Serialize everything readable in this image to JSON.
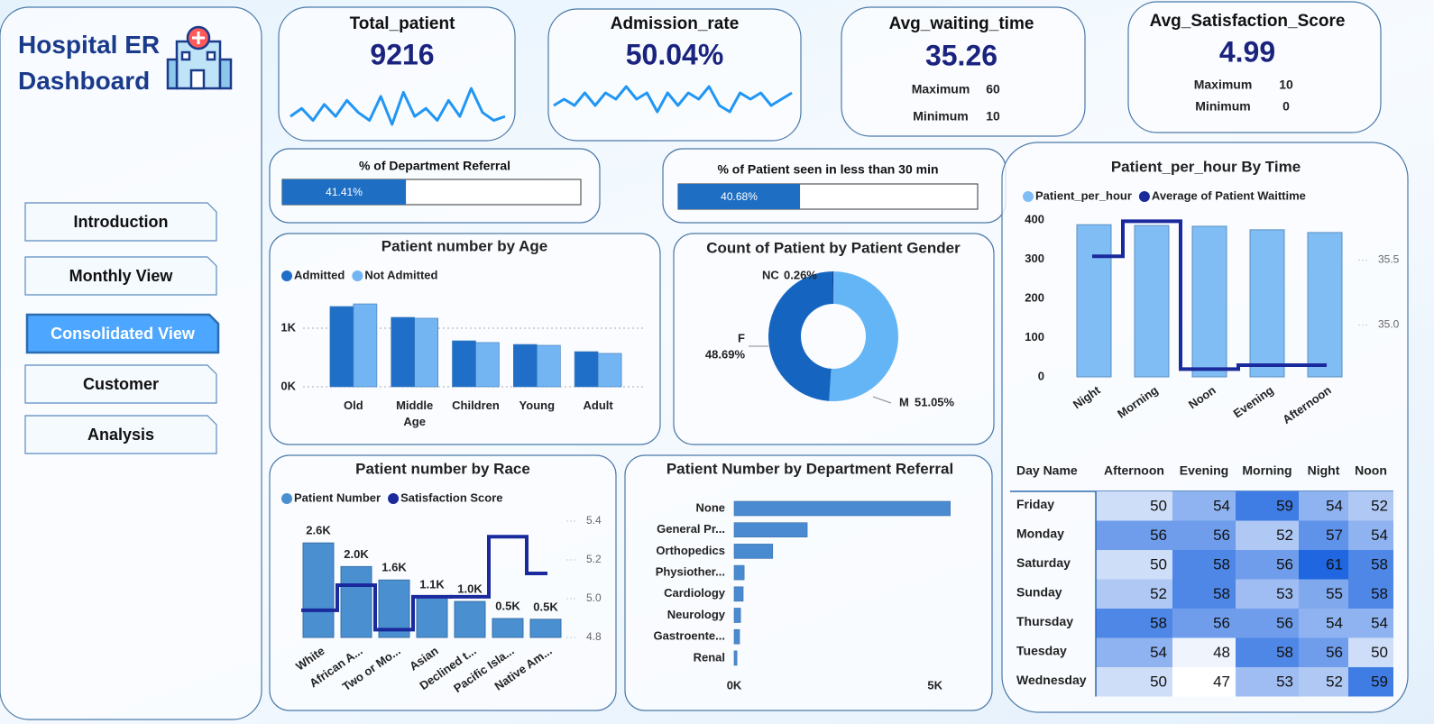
{
  "header": {
    "title": "Hospital ER Dashboard"
  },
  "nav": {
    "items": [
      "Introduction",
      "Monthly View",
      "Consolidated View",
      "Customer",
      "Analysis"
    ],
    "active": 2
  },
  "kpis": [
    {
      "title": "Total_patient",
      "value": 9216,
      "sparkline": [
        3,
        5,
        2,
        6,
        3,
        7,
        4,
        2,
        8,
        1,
        9,
        3,
        5,
        2,
        7,
        3,
        10,
        4,
        2,
        3
      ]
    },
    {
      "title": "Admission_rate",
      "value": "50.04%",
      "sparkline": [
        4,
        5,
        4,
        6,
        4,
        6,
        5,
        7,
        5,
        6,
        3,
        6,
        4,
        6,
        5,
        7,
        4,
        3,
        6,
        5,
        6,
        4,
        5,
        6
      ]
    },
    {
      "title": "Avg_waiting_time",
      "value": 35.26,
      "stats": [
        {
          "label": "Maximum",
          "value": 60
        },
        {
          "label": "Minimum",
          "value": 10
        }
      ]
    },
    {
      "title": "Avg_Satisfaction_Score",
      "value": 4.99,
      "stats": [
        {
          "label": "Maximum",
          "value": 10
        },
        {
          "label": "Minimum",
          "value": 0
        }
      ]
    }
  ],
  "chart_data": [
    {
      "type": "progress",
      "title": "% of Department Referral",
      "value": 41.41,
      "value_label": "41.41%",
      "xlim": [
        0,
        100
      ],
      "color": "#1e6fc4"
    },
    {
      "type": "progress",
      "title": "% of Patient seen in less than 30 min",
      "value": 40.68,
      "value_label": "40.68%",
      "xlim": [
        0,
        100
      ],
      "color": "#1e6fc4"
    },
    {
      "type": "bar",
      "title": "Patient number by Age",
      "categories": [
        "Old",
        "Middle Age",
        "Children",
        "Young",
        "Adult"
      ],
      "series": [
        {
          "name": "Admitted",
          "color": "#1f6fc8",
          "values": [
            1370,
            1185,
            785,
            723,
            600
          ]
        },
        {
          "name": "Not Admitted",
          "color": "#72b5f2",
          "values": [
            1415,
            1170,
            755,
            708,
            570
          ]
        }
      ],
      "ylim": [
        0,
        1700
      ],
      "yticks": [
        {
          "value": 0,
          "label": "0K"
        },
        {
          "value": 1000,
          "label": "1K"
        }
      ],
      "grid": true
    },
    {
      "type": "donut",
      "title": "Count of Patient by Patient Gender",
      "categories": [
        "M",
        "F",
        "NC"
      ],
      "values": [
        51.05,
        48.69,
        0.26
      ],
      "value_labels": [
        "51.05%",
        "48.69%",
        "0.26%"
      ],
      "colors": [
        "#64b5f6",
        "#1565c0",
        "#0d3c8c"
      ]
    },
    {
      "type": "combo",
      "title": "Patient number by Race",
      "categories": [
        "White",
        "African A...",
        "Two or Mo...",
        "Asian",
        "Declined t...",
        "Pacific Isla...",
        "Native Am..."
      ],
      "series": [
        {
          "name": "Patient Number",
          "type": "bar",
          "color": "#4a8fd0",
          "values": [
            2600,
            1950,
            1580,
            1120,
            990,
            520,
            500
          ],
          "value_labels": [
            "2.6K",
            "2.0K",
            "1.6K",
            "1.1K",
            "1.0K",
            "0.5K",
            "0.5K"
          ]
        },
        {
          "name": "Satisfaction Score",
          "type": "line",
          "axis": "y2",
          "color": "#1a2a9c",
          "values": [
            4.94,
            5.07,
            4.84,
            5.01,
            5.01,
            5.32,
            5.13
          ]
        }
      ],
      "ylim": [
        0,
        3200
      ],
      "y2lim": [
        4.8,
        5.4
      ],
      "y2ticks": [
        4.8,
        {
          "value": 5,
          "label": "5.0"
        },
        5.2,
        5.4
      ]
    },
    {
      "type": "hbar",
      "title": "Patient Number by Department Referral",
      "categories": [
        "None",
        "General Pr...",
        "Orthopedics",
        "Physiother...",
        "Cardiology",
        "Neurology",
        "Gastroente...",
        "Renal"
      ],
      "values": [
        5380,
        1820,
        960,
        250,
        225,
        160,
        135,
        70
      ],
      "color": "#4a8ad0",
      "xlim": [
        0,
        5500
      ],
      "xticks": [
        {
          "value": 0,
          "label": "0K"
        },
        {
          "value": 5000,
          "label": "5K"
        }
      ]
    },
    {
      "type": "combo",
      "title": "Patient_per_hour By Time",
      "categories": [
        "Night",
        "Morning",
        "Noon",
        "Evening",
        "Afternoon"
      ],
      "series": [
        {
          "name": "Patient_per_hour",
          "type": "bar",
          "color": "#80bdf5",
          "values": [
            388,
            386,
            384,
            375,
            368
          ]
        },
        {
          "name": "Average of Patient Waittime",
          "type": "line",
          "axis": "y2",
          "color": "#1a2a9c",
          "values": [
            35.53,
            35.8,
            34.66,
            34.69,
            34.69
          ]
        }
      ],
      "ylim": [
        0,
        420
      ],
      "yticks": [
        0,
        100,
        200,
        300,
        400
      ],
      "y2lim": [
        34.6,
        35.87
      ],
      "y2ticks": [
        {
          "value": 35,
          "label": "35.0"
        },
        35.5
      ]
    }
  ],
  "table": {
    "columns": [
      "Day Name",
      "Afternoon",
      "Evening",
      "Morning",
      "Night",
      "Noon"
    ],
    "rows": [
      [
        "Friday",
        50,
        54,
        59,
        54,
        52
      ],
      [
        "Monday",
        56,
        56,
        52,
        57,
        54
      ],
      [
        "Saturday",
        50,
        58,
        56,
        61,
        58
      ],
      [
        "Sunday",
        52,
        58,
        53,
        55,
        58
      ],
      [
        "Thursday",
        58,
        56,
        56,
        54,
        54
      ],
      [
        "Tuesday",
        54,
        48,
        58,
        56,
        50
      ],
      [
        "Wednesday",
        50,
        47,
        53,
        52,
        59
      ]
    ],
    "color_low": "#ffffff",
    "color_high": "#1f66e0"
  }
}
